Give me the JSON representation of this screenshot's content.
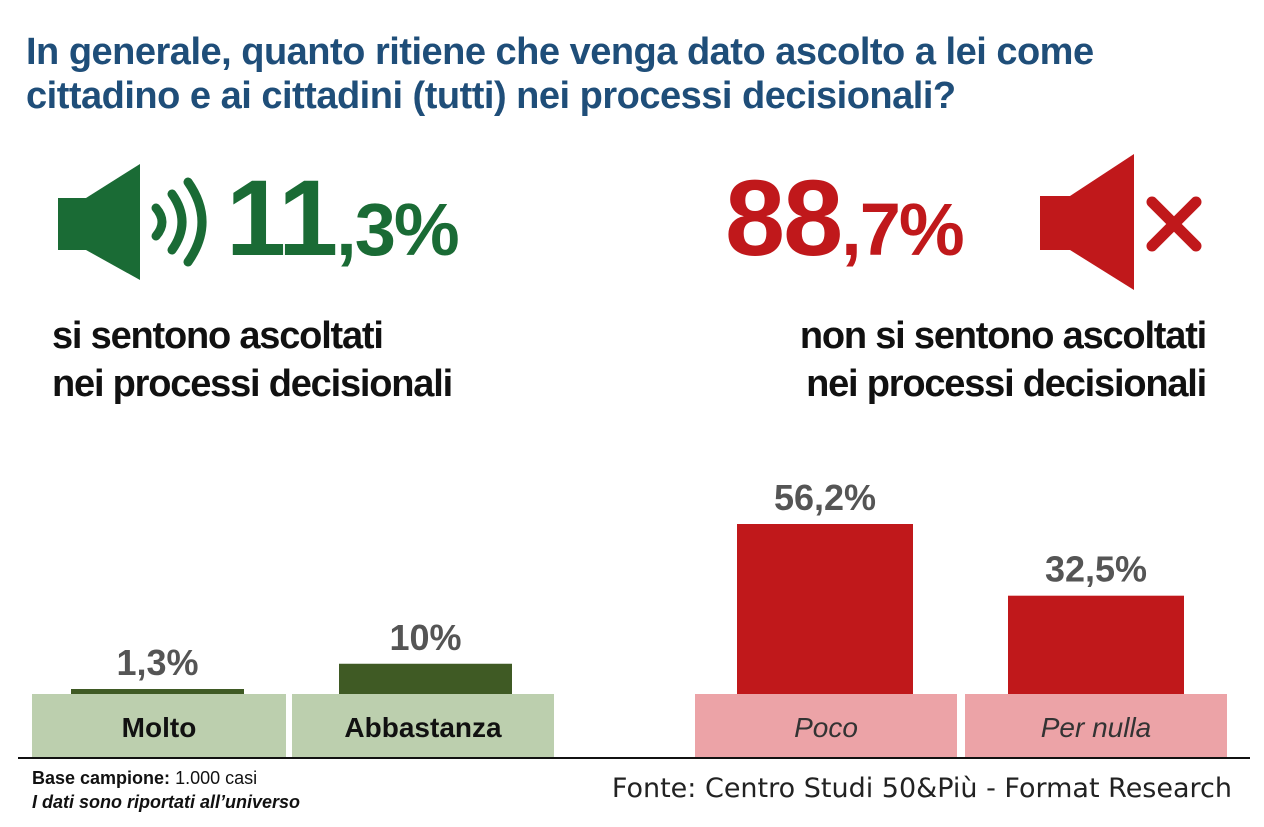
{
  "title": "In generale, quanto ritiene che venga dato ascolto a lei come cittadino e ai cittadini (tutti) nei processi decisionali?",
  "headline_yes": {
    "int": "11",
    "dec": ",3%",
    "line1": "si sentono ascoltati",
    "line2": "nei processi decisionali",
    "color": "#1a6b35"
  },
  "headline_no": {
    "int": "88",
    "dec": ",7%",
    "line1": "non si sentono ascoltati",
    "line2": "nei processi decisionali",
    "color": "#c0181b"
  },
  "icons": {
    "yes": "speaker-sound-icon",
    "no": "speaker-mute-icon"
  },
  "chart_data": {
    "type": "bar",
    "categories": [
      "Molto",
      "Abbastanza",
      "Poco",
      "Per nulla"
    ],
    "values": [
      1.3,
      10,
      56.2,
      32.5
    ],
    "value_labels": [
      "1,3%",
      "10%",
      "56,2%",
      "32,5%"
    ],
    "groups": [
      {
        "name": "yes",
        "categories": [
          "Molto",
          "Abbastanza"
        ],
        "bar_color": "#3f5a24",
        "label_bg": "#bccfae",
        "label_style": "bold"
      },
      {
        "name": "no",
        "categories": [
          "Poco",
          "Per nulla"
        ],
        "bar_color": "#c0181b",
        "label_bg": "#eca3a7",
        "label_style": "italic"
      }
    ],
    "ylim": [
      0,
      56.2
    ],
    "title": "",
    "xlabel": "",
    "ylabel": ""
  },
  "footer": {
    "base_label": "Base campione:",
    "base_value": "1.000 casi",
    "universe_note": "I dati sono riportati all’universo",
    "source": "Fonte: Centro Studi 50&Più - Format Research"
  }
}
